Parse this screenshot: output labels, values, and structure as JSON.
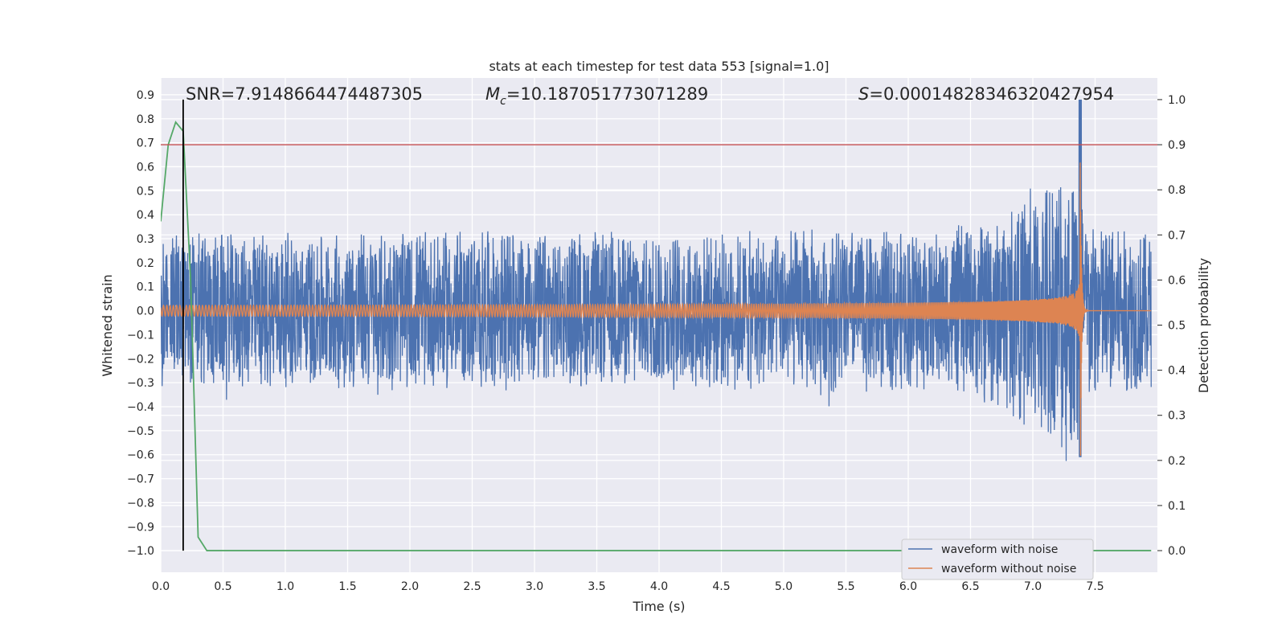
{
  "chart_data": {
    "type": "line",
    "title": "stats at each timestep for test data 553 [signal=1.0]",
    "xlabel": "Time (s)",
    "ylabel": "Whitened strain",
    "y2label": "Detection probability",
    "xlim": [
      0.0,
      8.0
    ],
    "ylim": [
      -1.09,
      0.97
    ],
    "y2lim": [
      -0.048,
      1.048
    ],
    "xticks": [
      "0.0",
      "0.5",
      "1.0",
      "1.5",
      "2.0",
      "2.5",
      "3.0",
      "3.5",
      "4.0",
      "4.5",
      "5.0",
      "5.5",
      "6.0",
      "6.5",
      "7.0",
      "7.5"
    ],
    "yticks": [
      "0.9",
      "0.8",
      "0.7",
      "0.6",
      "0.5",
      "0.4",
      "0.3",
      "0.2",
      "0.1",
      "0.0",
      "−0.1",
      "−0.2",
      "−0.3",
      "−0.4",
      "−0.5",
      "−0.6",
      "−0.7",
      "−0.8",
      "−0.9",
      "−1.0"
    ],
    "y2ticks": [
      "1.0",
      "0.9",
      "0.8",
      "0.7",
      "0.6",
      "0.5",
      "0.4",
      "0.3",
      "0.2",
      "0.1",
      "0.0"
    ],
    "grid": true,
    "legend_placement": "lower-right",
    "annotations": {
      "snr": "SNR=7.9148664474487305",
      "mc_symbol": "M",
      "mc_sub": "c",
      "mc_value": "=10.187051773071289",
      "s_symbol": "S",
      "s_value": "=0.00014828346320427954"
    },
    "merger_time": 7.38,
    "noise_band": {
      "base_amplitude": 0.3,
      "peak_max": 0.88,
      "peak_min": -0.71
    },
    "series": [
      {
        "name": "waveform with noise",
        "color": "#4c72b0"
      },
      {
        "name": "waveform without noise",
        "color": "#dd8452"
      },
      {
        "color": "#55a868",
        "axis": "right",
        "x": [
          0.0,
          0.06,
          0.12,
          0.18,
          0.24,
          0.3,
          0.37,
          0.45,
          1.0,
          2.0,
          3.0,
          4.0,
          5.0,
          6.0,
          7.0,
          7.95
        ],
        "y": [
          0.73,
          0.9,
          0.95,
          0.93,
          0.6,
          0.03,
          0.0,
          0.0,
          0.0,
          0.0,
          0.0,
          0.0,
          0.0,
          0.0,
          0.0,
          0.0
        ]
      }
    ],
    "threshold_line": {
      "axis": "right",
      "value": 0.9,
      "color": "#c44e52"
    },
    "vertical_line": {
      "x": 0.18,
      "color": "#000000"
    }
  }
}
